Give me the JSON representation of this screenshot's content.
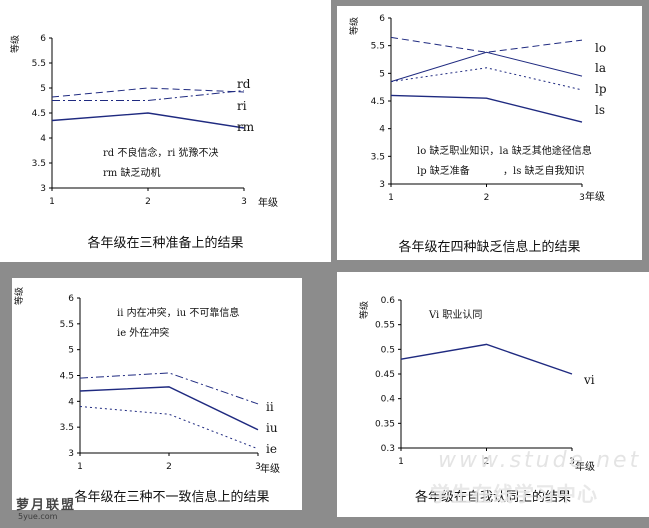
{
  "colors": {
    "line": "#1f2a80",
    "text": "#111111",
    "background": "#8c8c8c"
  },
  "watermark": {
    "site": "www.stude.net",
    "logo": "萝月联盟",
    "logo_sub": "5yue.com",
    "sub_cn": "学生在线学习中心"
  },
  "chart_data": [
    {
      "type": "line",
      "panel_id": "p1",
      "caption": "各年级在三种准备上的结果",
      "ylabel": "等级",
      "xlabel": "年级",
      "x": [
        1,
        2,
        3
      ],
      "ylim": [
        3,
        6
      ],
      "yticks": [
        "6",
        "5.5",
        "5",
        "4.5",
        "4",
        "3.5",
        "3"
      ],
      "xticks": [
        "1",
        "2",
        "3"
      ],
      "series": [
        {
          "name": "rd",
          "values": [
            4.82,
            5.0,
            4.92
          ],
          "style": "dashed"
        },
        {
          "name": "ri",
          "values": [
            4.75,
            4.75,
            4.95
          ],
          "style": "dashdot"
        },
        {
          "name": "rm",
          "values": [
            4.35,
            4.5,
            4.2
          ],
          "style": "solid"
        }
      ],
      "notes": [
        "rd 不良信念，ri 犹豫不决",
        "rm 缺乏动机"
      ]
    },
    {
      "type": "line",
      "panel_id": "p2",
      "caption": "各年级在四种缺乏信息上的结果",
      "ylabel": "等级",
      "xlabel": "年级",
      "x": [
        1,
        2,
        3
      ],
      "ylim": [
        3,
        6
      ],
      "yticks": [
        "6",
        "5.5",
        "5",
        "4.5",
        "4",
        "3.5",
        "3"
      ],
      "xticks": [
        "1",
        "2",
        "3"
      ],
      "series": [
        {
          "name": "lo",
          "values": [
            5.65,
            5.38,
            5.6
          ],
          "style": "dashed"
        },
        {
          "name": "la",
          "values": [
            4.85,
            5.38,
            4.95
          ],
          "style": "solid-thin"
        },
        {
          "name": "lp",
          "values": [
            4.85,
            5.1,
            4.7
          ],
          "style": "dotted"
        },
        {
          "name": "ls",
          "values": [
            4.6,
            4.55,
            4.12
          ],
          "style": "solid"
        }
      ],
      "notes": [
        "lo 缺乏职业知识，la 缺乏其他途径信息",
        "lp 缺乏准备",
        "，ls 缺乏自我知识"
      ]
    },
    {
      "type": "line",
      "panel_id": "p3",
      "caption": "各年级在三种不一致信息上的结果",
      "ylabel": "等级",
      "xlabel": "年级",
      "x": [
        1,
        2,
        3
      ],
      "ylim": [
        3,
        6
      ],
      "yticks": [
        "6",
        "5.5",
        "5",
        "4.5",
        "4",
        "3.5",
        "3"
      ],
      "xticks": [
        "1",
        "2",
        "3"
      ],
      "series": [
        {
          "name": "ii",
          "values": [
            4.45,
            4.55,
            3.95
          ],
          "style": "dashdot"
        },
        {
          "name": "iu",
          "values": [
            4.2,
            4.28,
            3.45
          ],
          "style": "solid"
        },
        {
          "name": "ie",
          "values": [
            3.9,
            3.75,
            3.08
          ],
          "style": "dotted"
        }
      ],
      "notes": [
        "ii 内在冲突，iu 不可靠信息",
        "ie 外在冲突"
      ]
    },
    {
      "type": "line",
      "panel_id": "p4",
      "caption": "各年级在自我认同上的结果",
      "ylabel": "等级",
      "xlabel": "年级",
      "x": [
        1,
        2,
        3
      ],
      "ylim": [
        0.3,
        0.6
      ],
      "yticks": [
        "0.6",
        "0.55",
        "0.5",
        "0.45",
        "0.4",
        "0.35",
        "0.3"
      ],
      "xticks": [
        "1",
        "2",
        "3"
      ],
      "series": [
        {
          "name": "vi",
          "values": [
            0.48,
            0.51,
            0.45
          ],
          "style": "solid"
        }
      ],
      "notes": [
        "Vi 职业认同"
      ]
    }
  ]
}
